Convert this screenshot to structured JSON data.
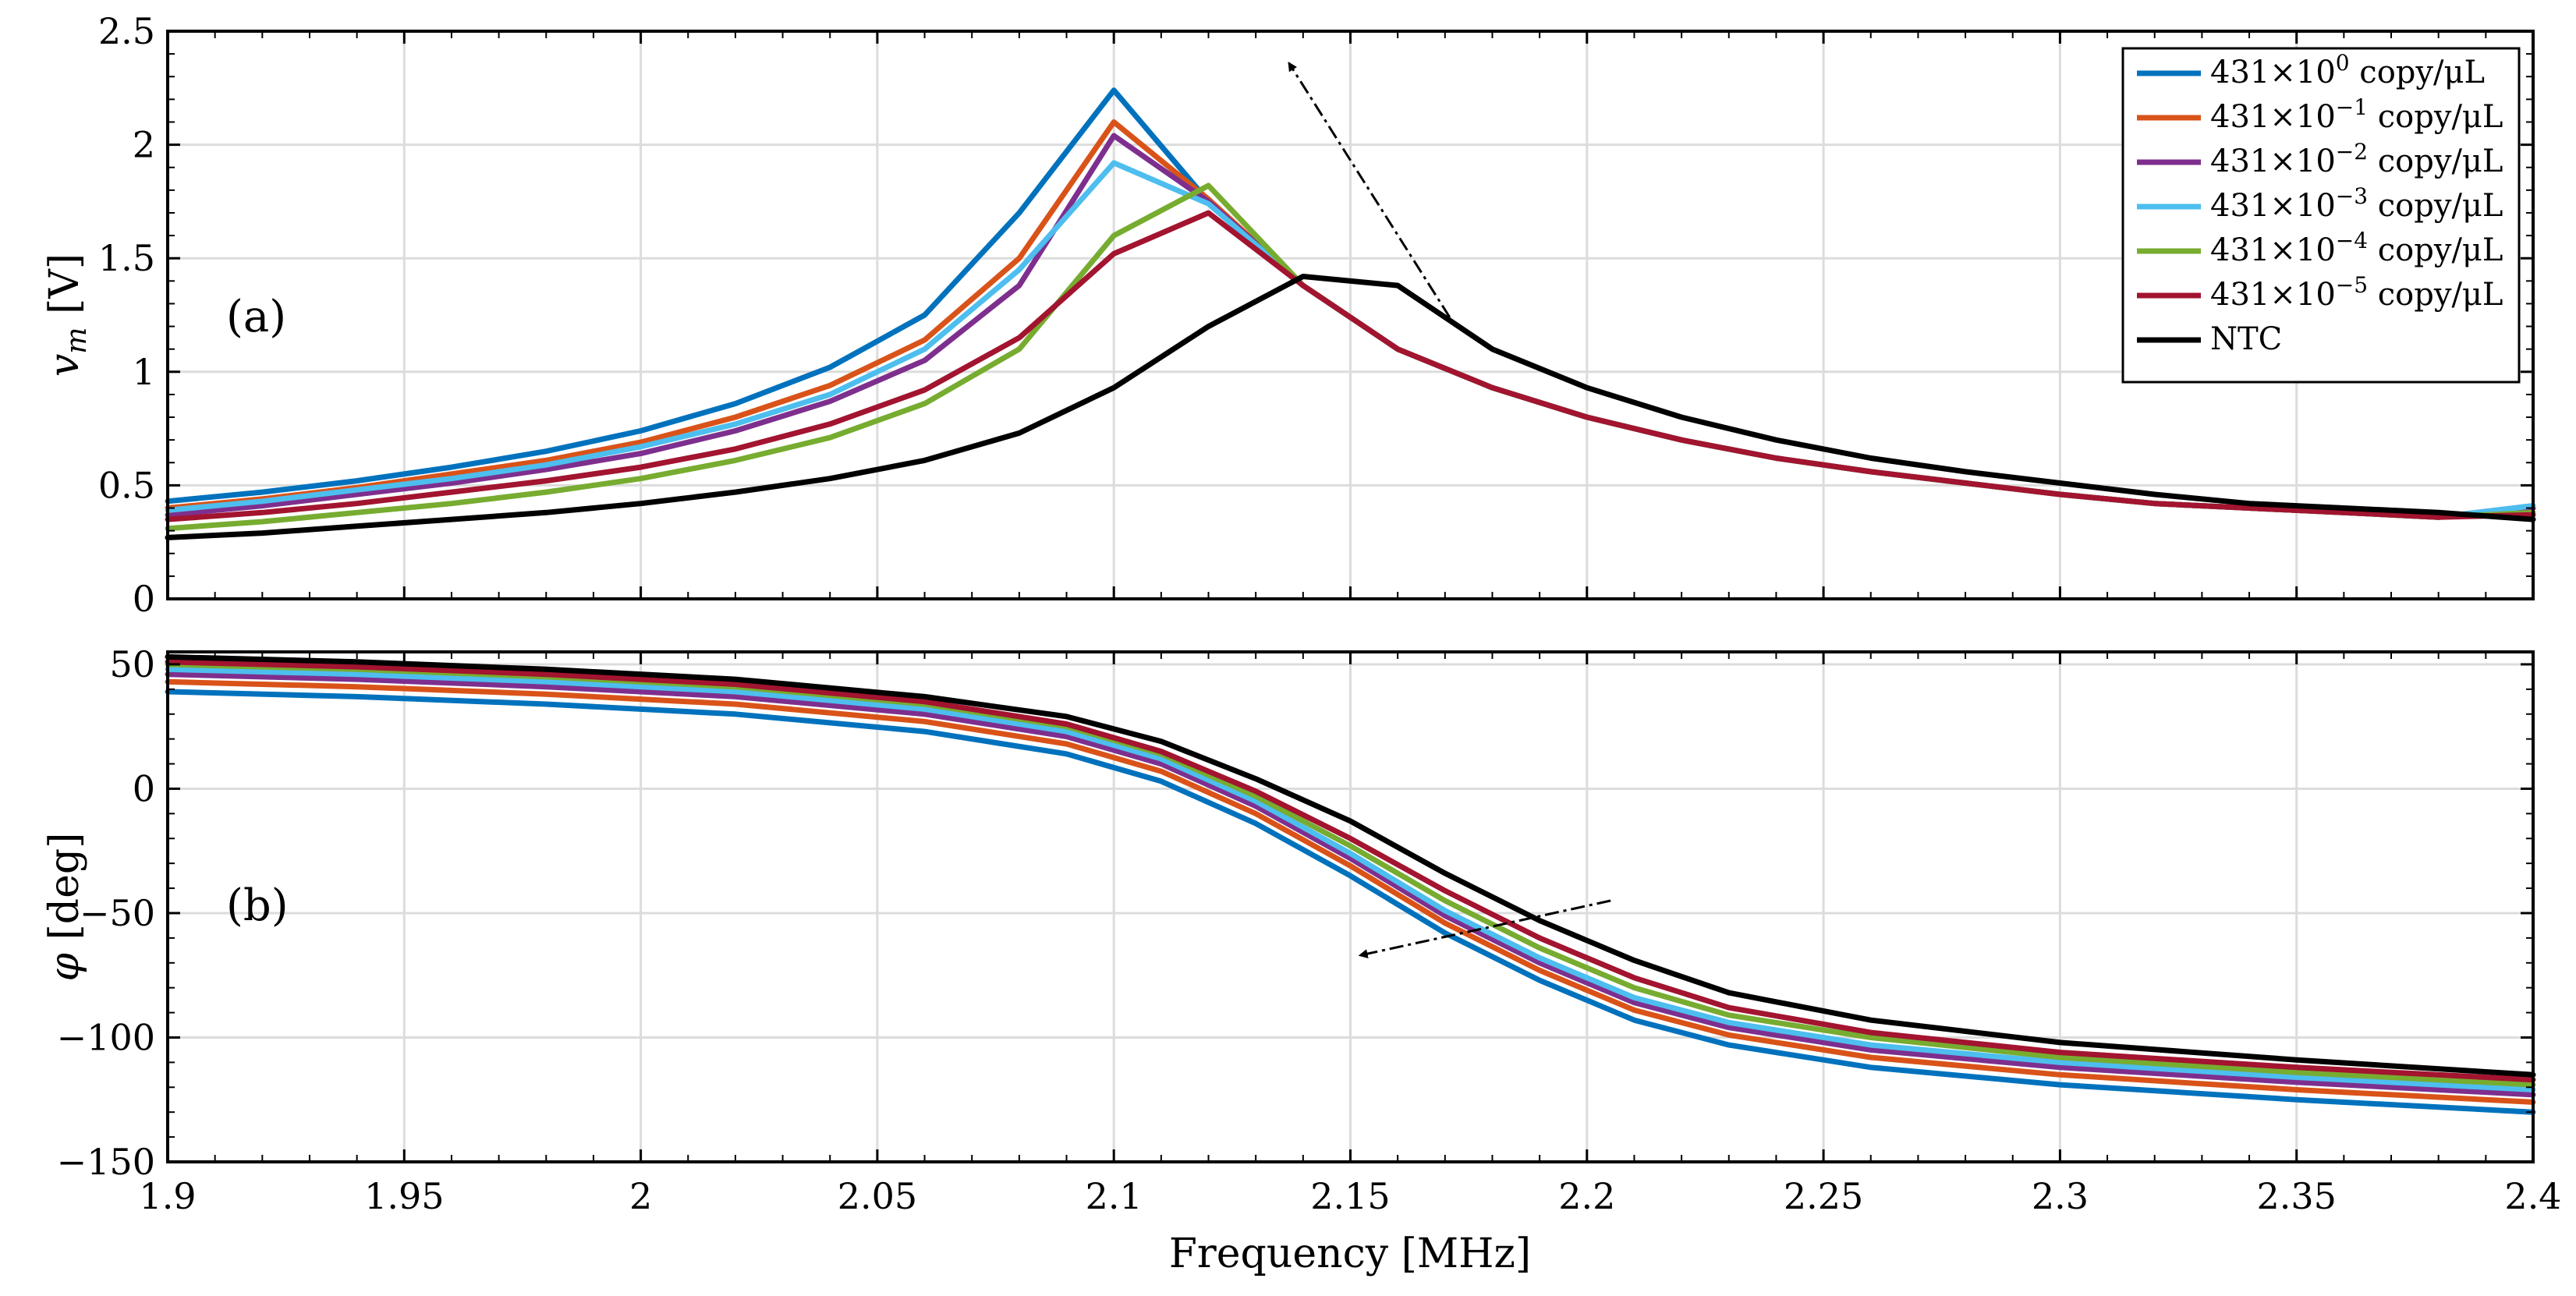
{
  "chart_data": [
    {
      "type": "line",
      "panel_label": "(a)",
      "ylabel": "v_m [V]",
      "ylabel_main": "v",
      "ylabel_sub": "m",
      "ylabel_unit": " [V]",
      "xlim": [
        1.9,
        2.4
      ],
      "ylim": [
        0,
        2.5
      ],
      "x_ticks": [
        "1.9",
        "1.95",
        "2",
        "2.05",
        "2.1",
        "2.15",
        "2.2",
        "2.25",
        "2.3",
        "2.35",
        "2.4"
      ],
      "y_ticks": [
        "0",
        "0.5",
        "1",
        "1.5",
        "2",
        "2.5"
      ],
      "y_tick_values": [
        0,
        0.5,
        1,
        1.5,
        2,
        2.5
      ],
      "grid": true,
      "legend_position": "top-right",
      "x": [
        1.9,
        1.92,
        1.94,
        1.96,
        1.98,
        2.0,
        2.02,
        2.04,
        2.06,
        2.08,
        2.1,
        2.12,
        2.14,
        2.16,
        2.18,
        2.2,
        2.22,
        2.24,
        2.26,
        2.28,
        2.3,
        2.32,
        2.34,
        2.36,
        2.38,
        2.4
      ],
      "series": [
        {
          "name": "431×10^0 copy/μL",
          "color": "#0072BD",
          "values": [
            0.43,
            0.47,
            0.52,
            0.58,
            0.65,
            0.74,
            0.86,
            1.02,
            1.25,
            1.7,
            2.24,
            1.75,
            1.38,
            1.1,
            0.93,
            0.8,
            0.7,
            0.62,
            0.56,
            0.51,
            0.46,
            0.42,
            0.4,
            0.38,
            0.36,
            0.41
          ]
        },
        {
          "name": "431×10^-1 copy/μL",
          "color": "#D95319",
          "values": [
            0.4,
            0.44,
            0.49,
            0.55,
            0.61,
            0.69,
            0.8,
            0.94,
            1.14,
            1.5,
            2.1,
            1.76,
            1.38,
            1.1,
            0.93,
            0.8,
            0.7,
            0.62,
            0.56,
            0.51,
            0.46,
            0.42,
            0.4,
            0.38,
            0.36,
            0.4
          ]
        },
        {
          "name": "431×10^-2 copy/μL",
          "color": "#7E2F8E",
          "values": [
            0.37,
            0.41,
            0.46,
            0.51,
            0.57,
            0.64,
            0.74,
            0.87,
            1.05,
            1.38,
            2.04,
            1.75,
            1.38,
            1.1,
            0.93,
            0.8,
            0.7,
            0.62,
            0.56,
            0.51,
            0.46,
            0.42,
            0.4,
            0.38,
            0.36,
            0.4
          ]
        },
        {
          "name": "431×10^-3 copy/μL",
          "color": "#4DBEEE",
          "values": [
            0.39,
            0.43,
            0.48,
            0.53,
            0.59,
            0.67,
            0.77,
            0.9,
            1.1,
            1.45,
            1.92,
            1.74,
            1.38,
            1.1,
            0.93,
            0.8,
            0.7,
            0.62,
            0.56,
            0.51,
            0.46,
            0.42,
            0.4,
            0.38,
            0.36,
            0.41
          ]
        },
        {
          "name": "431×10^-4 copy/μL",
          "color": "#77AC30",
          "values": [
            0.31,
            0.34,
            0.38,
            0.42,
            0.47,
            0.53,
            0.61,
            0.71,
            0.86,
            1.1,
            1.6,
            1.82,
            1.38,
            1.1,
            0.93,
            0.8,
            0.7,
            0.62,
            0.56,
            0.51,
            0.46,
            0.42,
            0.4,
            0.38,
            0.36,
            0.38
          ]
        },
        {
          "name": "431×10^-5 copy/μL",
          "color": "#A2142F",
          "values": [
            0.35,
            0.38,
            0.42,
            0.47,
            0.52,
            0.58,
            0.66,
            0.77,
            0.92,
            1.15,
            1.52,
            1.7,
            1.38,
            1.1,
            0.93,
            0.8,
            0.7,
            0.62,
            0.56,
            0.51,
            0.46,
            0.42,
            0.4,
            0.38,
            0.36,
            0.37
          ]
        },
        {
          "name": "NTC",
          "color": "#000000",
          "values": [
            0.27,
            0.29,
            0.32,
            0.35,
            0.38,
            0.42,
            0.47,
            0.53,
            0.61,
            0.73,
            0.93,
            1.2,
            1.42,
            1.38,
            1.1,
            0.93,
            0.8,
            0.7,
            0.62,
            0.56,
            0.51,
            0.46,
            0.42,
            0.4,
            0.38,
            0.35
          ]
        }
      ],
      "annotation_arrow": {
        "from": [
          2.171,
          1.24
        ],
        "to": [
          2.137,
          2.36
        ],
        "style": "dash-dot"
      }
    },
    {
      "type": "line",
      "panel_label": "(b)",
      "ylabel": "φ [deg]",
      "xlabel": "Frequency [MHz]",
      "xlim": [
        1.9,
        2.4
      ],
      "ylim": [
        -150,
        55
      ],
      "x_ticks": [
        "1.9",
        "1.95",
        "2",
        "2.05",
        "2.1",
        "2.15",
        "2.2",
        "2.25",
        "2.3",
        "2.35",
        "2.4"
      ],
      "y_ticks": [
        "−150",
        "−100",
        "−50",
        "0",
        "50"
      ],
      "y_tick_values": [
        -150,
        -100,
        -50,
        0,
        50
      ],
      "grid": true,
      "x": [
        1.9,
        1.94,
        1.98,
        2.02,
        2.06,
        2.09,
        2.11,
        2.13,
        2.15,
        2.17,
        2.19,
        2.21,
        2.23,
        2.26,
        2.3,
        2.35,
        2.4
      ],
      "series": [
        {
          "name": "431×10^0 copy/μL",
          "color": "#0072BD",
          "values": [
            39,
            37,
            34,
            30,
            23,
            14,
            3,
            -14,
            -35,
            -58,
            -77,
            -93,
            -103,
            -112,
            -119,
            -125,
            -130
          ]
        },
        {
          "name": "431×10^-1 copy/μL",
          "color": "#D95319",
          "values": [
            43,
            41,
            38,
            34,
            27,
            18,
            7,
            -10,
            -31,
            -54,
            -73,
            -89,
            -99,
            -108,
            -115,
            -121,
            -126
          ]
        },
        {
          "name": "431×10^-2 copy/μL",
          "color": "#7E2F8E",
          "values": [
            46,
            44,
            41,
            37,
            30,
            21,
            10,
            -7,
            -28,
            -51,
            -70,
            -86,
            -96,
            -105,
            -112,
            -118,
            -123
          ]
        },
        {
          "name": "431×10^-3 copy/μL",
          "color": "#4DBEEE",
          "values": [
            48,
            46,
            43,
            39,
            32,
            23,
            12,
            -5,
            -26,
            -49,
            -68,
            -84,
            -94,
            -103,
            -110,
            -116,
            -121
          ]
        },
        {
          "name": "431×10^-4 copy/μL",
          "color": "#77AC30",
          "values": [
            50,
            48,
            45,
            41,
            34,
            25,
            14,
            -3,
            -23,
            -45,
            -64,
            -80,
            -91,
            -100,
            -108,
            -114,
            -119
          ]
        },
        {
          "name": "431×10^-5 copy/μL",
          "color": "#A2142F",
          "values": [
            51,
            49,
            46,
            42,
            35,
            26,
            15,
            -1,
            -20,
            -41,
            -60,
            -76,
            -88,
            -98,
            -106,
            -112,
            -117
          ]
        },
        {
          "name": "NTC",
          "color": "#000000",
          "values": [
            53,
            51,
            48,
            44,
            37,
            29,
            19,
            4,
            -13,
            -34,
            -53,
            -69,
            -82,
            -93,
            -102,
            -109,
            -115
          ]
        }
      ],
      "annotation_arrow": {
        "from": [
          2.205,
          -45
        ],
        "to": [
          2.152,
          -67
        ],
        "style": "dash-dot"
      }
    }
  ],
  "legend": {
    "entries": [
      {
        "base": "431×10",
        "exp": "0",
        "unit": " copy/μL",
        "color": "#0072BD"
      },
      {
        "base": "431×10",
        "exp": "−1",
        "unit": " copy/μL",
        "color": "#D95319"
      },
      {
        "base": "431×10",
        "exp": "−2",
        "unit": " copy/μL",
        "color": "#7E2F8E"
      },
      {
        "base": "431×10",
        "exp": "−3",
        "unit": " copy/μL",
        "color": "#4DBEEE"
      },
      {
        "base": "431×10",
        "exp": "−4",
        "unit": " copy/μL",
        "color": "#77AC30"
      },
      {
        "base": "431×10",
        "exp": "−5",
        "unit": " copy/μL",
        "color": "#A2142F"
      },
      {
        "base": "NTC",
        "exp": "",
        "unit": "",
        "color": "#000000"
      }
    ]
  },
  "labels": {
    "xlabel": "Frequency [MHz]",
    "top_ylabel_main": "v",
    "top_ylabel_sub": "m",
    "top_ylabel_unit": " [V]",
    "bottom_ylabel_main": "φ",
    "bottom_ylabel_unit": " [deg]",
    "panel_a": "(a)",
    "panel_b": "(b)"
  }
}
